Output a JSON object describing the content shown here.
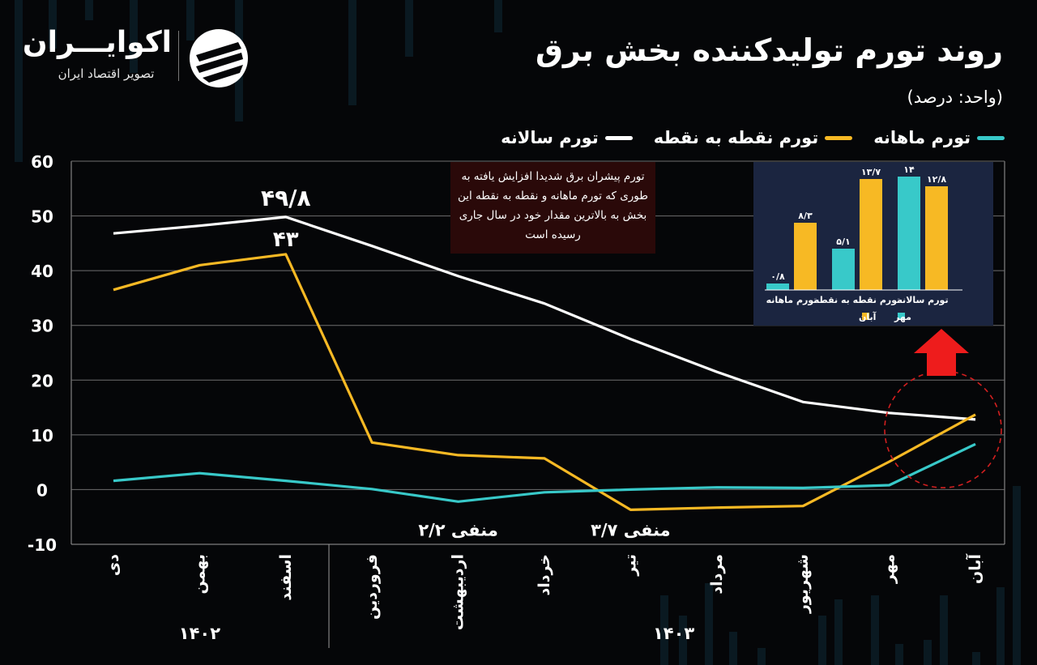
{
  "title": "روند تورم تولیدکننده بخش برق",
  "unit": "(واحد: درصد)",
  "logo": {
    "name": "اکوایـــران",
    "subtitle": "تصویر اقتصاد ایران"
  },
  "legend": [
    {
      "label": "تورم ماهانه",
      "color": "#38c9c9"
    },
    {
      "label": "تورم نقطه به نقطه",
      "color": "#f7b924"
    },
    {
      "label": "تورم سالانه",
      "color": "#ffffff"
    }
  ],
  "note": "تورم پیشران برق شدیدا افزایش یافته به طوری که تورم ماهانه و نقطه به نقطه این بخش به بالاترین مقدار خود در سال جاری رسیده است",
  "chart_data": [
    {
      "type": "line",
      "categories": [
        "دی",
        "بهمن",
        "اسفند",
        "فروردین",
        "اردیبهشت",
        "خرداد",
        "تیر",
        "مرداد",
        "شهریور",
        "مهر",
        "آبان"
      ],
      "year_groups": [
        {
          "label": "۱۴۰۲",
          "from": 0,
          "to": 2
        },
        {
          "label": "۱۴۰۳",
          "from": 3,
          "to": 10
        }
      ],
      "ylim": [
        -10,
        60
      ],
      "yticks": [
        {
          "value": 60,
          "label": "60"
        },
        {
          "value": 50,
          "label": "50"
        },
        {
          "value": 40,
          "label": "40"
        },
        {
          "value": 30,
          "label": "30"
        },
        {
          "value": 20,
          "label": "20"
        },
        {
          "value": 10,
          "label": "10"
        },
        {
          "value": 0,
          "label": "0"
        },
        {
          "value": -10,
          "label": "-10"
        }
      ],
      "grid": true,
      "series": [
        {
          "name": "تورم سالانه",
          "color": "#ffffff",
          "values": [
            46.8,
            48.2,
            49.8,
            44.5,
            39.0,
            34.0,
            27.5,
            21.5,
            16.0,
            14.0,
            12.8
          ]
        },
        {
          "name": "تورم نقطه به نقطه",
          "color": "#f7b924",
          "values": [
            36.5,
            41.0,
            43.0,
            8.6,
            6.3,
            5.7,
            -3.7,
            -3.3,
            -3.0,
            5.1,
            13.7
          ]
        },
        {
          "name": "تورم ماهانه",
          "color": "#38c9c9",
          "values": [
            1.6,
            3.0,
            1.6,
            0.1,
            -2.2,
            -0.5,
            0.0,
            0.4,
            0.3,
            0.8,
            8.3
          ]
        }
      ],
      "annotations": [
        {
          "series": 0,
          "index": 2,
          "text": "۴۹/۸"
        },
        {
          "series": 1,
          "index": 2,
          "text": "۴۳"
        },
        {
          "series": 2,
          "index": 4,
          "text": "منفی ۲/۲"
        },
        {
          "series": 1,
          "index": 6,
          "text": "منفی ۳/۷"
        }
      ]
    },
    {
      "type": "bar",
      "categories": [
        "تورم ماهانه",
        "تورم نقطه به نقطه",
        "تورم سالانه"
      ],
      "ylim": [
        0,
        14
      ],
      "series": [
        {
          "name": "مهر",
          "color": "#38c9c9",
          "values": [
            0.8,
            5.1,
            14
          ],
          "labels": [
            "۰/۸",
            "۵/۱",
            "۱۴"
          ]
        },
        {
          "name": "آبان",
          "color": "#f7b924",
          "values": [
            8.3,
            13.7,
            12.8
          ],
          "labels": [
            "۸/۳",
            "۱۳/۷",
            "۱۲/۸"
          ]
        }
      ]
    }
  ]
}
